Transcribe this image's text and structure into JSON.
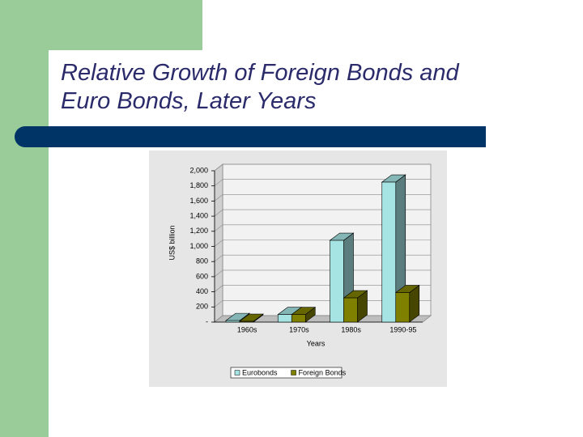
{
  "chart_data": {
    "type": "bar3d",
    "title": "Relative Growth of Foreign Bonds and Euro Bonds, Later Years",
    "y_label": "US$ billion",
    "x_label": "Years",
    "categories": [
      "1960s",
      "1970s",
      "1980s",
      "1990-95"
    ],
    "series": [
      {
        "name": "Eurobonds",
        "color": "#a6e3e3",
        "values": [
          20,
          100,
          1080,
          1850
        ]
      },
      {
        "name": "Foreign Bonds",
        "color": "#808000",
        "values": [
          10,
          100,
          320,
          390
        ]
      }
    ],
    "ylim": [
      0,
      2000
    ],
    "yticks": [
      {
        "value": 0,
        "label": "-"
      },
      200,
      400,
      600,
      800,
      {
        "value": 1000,
        "label": "1,000"
      },
      {
        "value": 1200,
        "label": "1,200"
      },
      {
        "value": 1400,
        "label": "1,400"
      },
      {
        "value": 1600,
        "label": "1,600"
      },
      {
        "value": 1800,
        "label": "1,800"
      },
      {
        "value": 2000,
        "label": "2,000"
      }
    ],
    "grid": true,
    "legend": "bottom"
  }
}
